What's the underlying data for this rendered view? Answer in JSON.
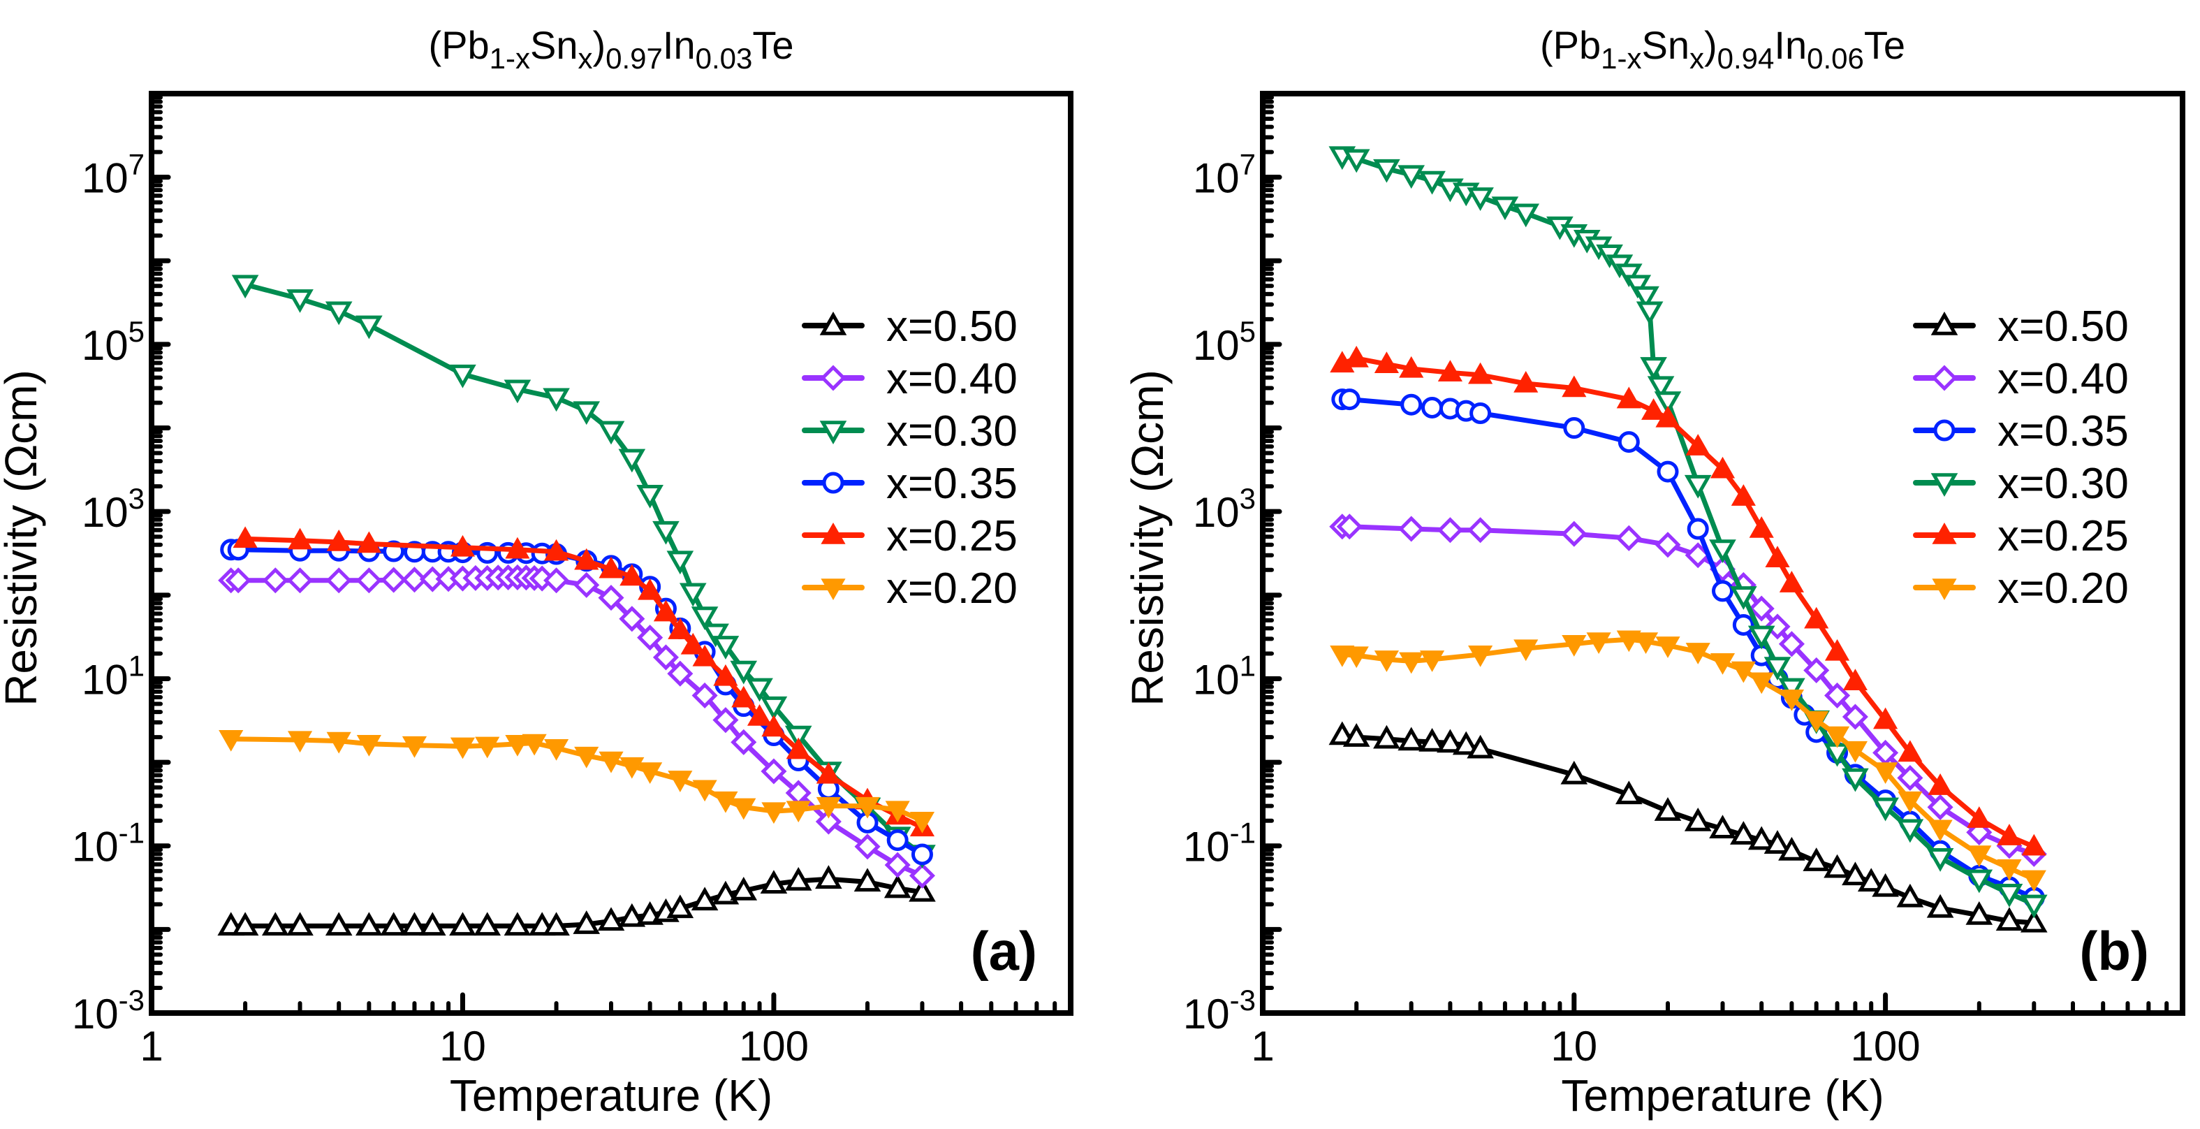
{
  "chart_data": [
    {
      "type": "line",
      "panel_label": "(a)",
      "title_parts": [
        {
          "text": "(Pb"
        },
        {
          "text": "1-x",
          "sub": true
        },
        {
          "text": "Sn"
        },
        {
          "text": "x",
          "sub": true
        },
        {
          "text": ")"
        },
        {
          "text": "0.97",
          "sub": true
        },
        {
          "text": "In"
        },
        {
          "text": "0.03",
          "sub": true
        },
        {
          "text": "Te"
        }
      ],
      "xlabel": "Temperature (K)",
      "ylabel": "Resistivity (Ωcm)",
      "xscale": "log",
      "yscale": "log",
      "xlim": [
        1,
        900
      ],
      "ylim": [
        0.001,
        100000000
      ],
      "x_ticks": [
        {
          "value": 1,
          "label": "1"
        },
        {
          "value": 10,
          "label": "10"
        },
        {
          "value": 100,
          "label": "100"
        }
      ],
      "y_ticks": [
        {
          "value": 0.001,
          "base": "10",
          "exp": "-3"
        },
        {
          "value": 0.1,
          "base": "10",
          "exp": "-1"
        },
        {
          "value": 10,
          "base": "10",
          "exp": "1"
        },
        {
          "value": 1000,
          "base": "10",
          "exp": "3"
        },
        {
          "value": 100000,
          "base": "10",
          "exp": "5"
        },
        {
          "value": 10000000,
          "base": "10",
          "exp": "7"
        }
      ],
      "grid": false,
      "legend_position": "right",
      "legend_order": [
        "x=0.50",
        "x=0.40",
        "x=0.30",
        "x=0.35",
        "x=0.25",
        "x=0.20"
      ],
      "series": [
        {
          "name": "x=0.50",
          "color": "#000000",
          "marker": "triangle-up-open",
          "x": [
            1.8,
            2,
            2.5,
            3,
            4,
            5,
            6,
            7,
            8,
            10,
            12,
            15,
            18,
            20,
            25,
            30,
            35,
            40,
            45,
            50,
            60,
            70,
            80,
            100,
            120,
            150,
            200,
            250,
            300
          ],
          "y": [
            0.011,
            0.011,
            0.011,
            0.011,
            0.011,
            0.011,
            0.011,
            0.011,
            0.011,
            0.011,
            0.011,
            0.011,
            0.011,
            0.011,
            0.0115,
            0.0126,
            0.014,
            0.0148,
            0.016,
            0.0178,
            0.022,
            0.026,
            0.029,
            0.035,
            0.038,
            0.04,
            0.037,
            0.031,
            0.028
          ]
        },
        {
          "name": "x=0.40",
          "color": "#9933ff",
          "marker": "diamond-open",
          "x": [
            1.8,
            1.9,
            2.5,
            3,
            4,
            5,
            6,
            7,
            8,
            9,
            10,
            11,
            12,
            13,
            14,
            15,
            16,
            17,
            18,
            20,
            25,
            30,
            35,
            40,
            45,
            50,
            60,
            70,
            80,
            100,
            120,
            150,
            200,
            250,
            300
          ],
          "y": [
            150,
            150,
            150,
            150,
            150,
            150,
            152,
            153,
            155,
            156,
            158,
            160,
            160,
            162,
            163,
            163,
            162,
            160,
            158,
            150,
            132,
            93,
            52,
            31,
            18,
            11.5,
            6.3,
            3.2,
            1.74,
            0.78,
            0.43,
            0.195,
            0.098,
            0.059,
            0.044
          ]
        },
        {
          "name": "x=0.30",
          "color": "#008c50",
          "marker": "triangle-down-open",
          "x": [
            2,
            3,
            4,
            5,
            10,
            15,
            20,
            25,
            30,
            35,
            40,
            45,
            50,
            55,
            60,
            65,
            70,
            80,
            90,
            100,
            120,
            150,
            200,
            250,
            300
          ],
          "y": [
            520000,
            350000,
            250000,
            170000,
            44000,
            29000,
            23000,
            16000,
            9300,
            4300,
            1600,
            590,
            260,
            107,
            56,
            35,
            25,
            12.6,
            7.8,
            4.7,
            2.1,
            0.78,
            0.29,
            0.13,
            0.079
          ]
        },
        {
          "name": "x=0.35",
          "color": "#0022ff",
          "marker": "circle-open",
          "x": [
            1.8,
            1.9,
            3,
            4,
            5,
            6,
            7,
            8,
            9,
            10,
            12,
            14,
            16,
            18,
            20,
            25,
            30,
            35,
            40,
            45,
            50,
            60,
            70,
            80,
            100,
            120,
            150,
            200,
            250,
            300
          ],
          "y": [
            350,
            350,
            340,
            340,
            335,
            335,
            330,
            330,
            330,
            325,
            320,
            320,
            318,
            315,
            310,
            257,
            224,
            178,
            126,
            69,
            40,
            21,
            8.5,
            4.7,
            2.1,
            1.05,
            0.48,
            0.19,
            0.117,
            0.079
          ]
        },
        {
          "name": "x=0.25",
          "color": "#ff2200",
          "marker": "triangle-up-filled",
          "x": [
            2,
            3,
            4,
            5,
            10,
            15,
            20,
            25,
            30,
            35,
            40,
            45,
            50,
            55,
            60,
            70,
            80,
            90,
            100,
            120,
            150,
            200,
            250,
            300
          ],
          "y": [
            470,
            450,
            430,
            410,
            370,
            350,
            330,
            257,
            204,
            166,
            112,
            62,
            38,
            25,
            18,
            10.5,
            5.8,
            3.5,
            2.6,
            1.4,
            0.71,
            0.35,
            0.23,
            0.166
          ]
        },
        {
          "name": "x=0.20",
          "color": "#ff9900",
          "marker": "triangle-down-filled",
          "x": [
            1.8,
            3,
            4,
            5,
            7,
            10,
            12,
            15,
            17,
            20,
            25,
            30,
            35,
            40,
            50,
            60,
            70,
            80,
            100,
            120,
            150,
            200,
            250,
            300
          ],
          "y": [
            1.9,
            1.85,
            1.8,
            1.66,
            1.6,
            1.55,
            1.58,
            1.66,
            1.7,
            1.48,
            1.2,
            1.05,
            0.9,
            0.78,
            0.62,
            0.48,
            0.35,
            0.29,
            0.26,
            0.27,
            0.3,
            0.3,
            0.27,
            0.2
          ]
        }
      ]
    },
    {
      "type": "line",
      "panel_label": "(b)",
      "title_parts": [
        {
          "text": "(Pb"
        },
        {
          "text": "1-x",
          "sub": true
        },
        {
          "text": "Sn"
        },
        {
          "text": "x",
          "sub": true
        },
        {
          "text": ")"
        },
        {
          "text": "0.94",
          "sub": true
        },
        {
          "text": "In"
        },
        {
          "text": "0.06",
          "sub": true
        },
        {
          "text": "Te"
        }
      ],
      "xlabel": "Temperature (K)",
      "ylabel": "Resistivity (Ωcm)",
      "xscale": "log",
      "yscale": "log",
      "xlim": [
        1,
        900
      ],
      "ylim": [
        0.001,
        100000000
      ],
      "x_ticks": [
        {
          "value": 1,
          "label": "1"
        },
        {
          "value": 10,
          "label": "10"
        },
        {
          "value": 100,
          "label": "100"
        }
      ],
      "y_ticks": [
        {
          "value": 0.001,
          "base": "10",
          "exp": "-3"
        },
        {
          "value": 0.1,
          "base": "10",
          "exp": "-1"
        },
        {
          "value": 10,
          "base": "10",
          "exp": "1"
        },
        {
          "value": 1000,
          "base": "10",
          "exp": "3"
        },
        {
          "value": 100000,
          "base": "10",
          "exp": "5"
        },
        {
          "value": 10000000,
          "base": "10",
          "exp": "7"
        }
      ],
      "grid": false,
      "legend_position": "right",
      "legend_order": [
        "x=0.50",
        "x=0.40",
        "x=0.35",
        "x=0.30",
        "x=0.25",
        "x=0.20"
      ],
      "series": [
        {
          "name": "x=0.50",
          "color": "#000000",
          "marker": "triangle-up-open",
          "x": [
            1.8,
            2,
            2.5,
            3,
            3.5,
            4,
            4.5,
            5,
            10,
            15,
            20,
            25,
            30,
            35,
            40,
            45,
            50,
            60,
            70,
            80,
            90,
            100,
            120,
            150,
            200,
            250,
            300
          ],
          "y": [
            2.1,
            2.0,
            1.9,
            1.8,
            1.75,
            1.7,
            1.6,
            1.45,
            0.71,
            0.41,
            0.26,
            0.195,
            0.16,
            0.135,
            0.117,
            0.105,
            0.087,
            0.065,
            0.054,
            0.044,
            0.037,
            0.032,
            0.024,
            0.018,
            0.0148,
            0.0126,
            0.012
          ]
        },
        {
          "name": "x=0.40",
          "color": "#9933ff",
          "marker": "diamond-open",
          "x": [
            1.8,
            1.9,
            3,
            4,
            5,
            10,
            15,
            20,
            25,
            30,
            35,
            40,
            45,
            50,
            60,
            70,
            80,
            100,
            120,
            150,
            200,
            250,
            300
          ],
          "y": [
            660,
            660,
            620,
            600,
            600,
            540,
            480,
            400,
            300,
            204,
            132,
            69,
            42,
            26,
            12.6,
            6.3,
            3.5,
            1.3,
            0.65,
            0.29,
            0.145,
            0.1,
            0.08
          ]
        },
        {
          "name": "x=0.35",
          "color": "#0022ff",
          "marker": "circle-open",
          "x": [
            1.8,
            1.9,
            3,
            3.5,
            4,
            4.5,
            5,
            10,
            15,
            20,
            25,
            30,
            35,
            40,
            45,
            50,
            55,
            60,
            70,
            80,
            100,
            120,
            150,
            200,
            250,
            300
          ],
          "y": [
            22000,
            22000,
            19000,
            17500,
            17000,
            16000,
            15000,
            10000,
            6800,
            3000,
            620,
            112,
            44,
            19,
            10,
            5.9,
            3.7,
            2.3,
            1.3,
            0.71,
            0.35,
            0.195,
            0.087,
            0.044,
            0.032,
            0.024
          ]
        },
        {
          "name": "x=0.30",
          "color": "#008c50",
          "marker": "triangle-down-open",
          "x": [
            1.8,
            2,
            2.5,
            3,
            3.5,
            4,
            4.5,
            5,
            6,
            7,
            9,
            10,
            11,
            12,
            13,
            14,
            15,
            16,
            17,
            17.5,
            18,
            19,
            20,
            25,
            30,
            35,
            40,
            45,
            50,
            60,
            70,
            80,
            100,
            120,
            150,
            200,
            250,
            300
          ],
          "y": [
            18000000,
            16600000,
            12600000,
            10700000,
            9100000,
            7400000,
            6600000,
            5800000,
            4500000,
            3700000,
            2600000,
            2100000,
            1800000,
            1500000,
            1200000,
            910000,
            710000,
            520000,
            380000,
            250000,
            54000,
            32000,
            21000,
            2100,
            355,
            98,
            33,
            14,
            7.8,
            3.2,
            1.3,
            0.65,
            0.29,
            0.16,
            0.072,
            0.04,
            0.027,
            0.02
          ]
        },
        {
          "name": "x=0.25",
          "color": "#ff2200",
          "marker": "triangle-up-filled",
          "x": [
            1.8,
            2,
            2.5,
            3,
            4,
            5,
            7,
            10,
            15,
            18,
            20,
            25,
            30,
            35,
            40,
            45,
            50,
            60,
            70,
            80,
            100,
            120,
            150,
            200,
            250,
            300
          ],
          "y": [
            59000,
            68000,
            58000,
            51000,
            46000,
            43000,
            34000,
            30000,
            22000,
            16000,
            13000,
            6000,
            3200,
            1500,
            620,
            275,
            138,
            51,
            21,
            9.3,
            3.2,
            1.3,
            0.52,
            0.21,
            0.13,
            0.098
          ]
        },
        {
          "name": "x=0.20",
          "color": "#ff9900",
          "marker": "triangle-down-filled",
          "x": [
            1.8,
            2,
            2.5,
            3,
            3.5,
            5,
            7,
            10,
            12,
            15,
            17,
            20,
            25,
            30,
            35,
            40,
            50,
            60,
            70,
            80,
            100,
            120,
            150,
            200,
            250,
            300
          ],
          "y": [
            19.5,
            19,
            17,
            16.2,
            17,
            19.5,
            23,
            26,
            28,
            29.5,
            28,
            25,
            21,
            15.8,
            12.6,
            9.3,
            5.8,
            3.2,
            2.1,
            1.4,
            0.78,
            0.35,
            0.16,
            0.079,
            0.054,
            0.04
          ]
        }
      ]
    }
  ]
}
